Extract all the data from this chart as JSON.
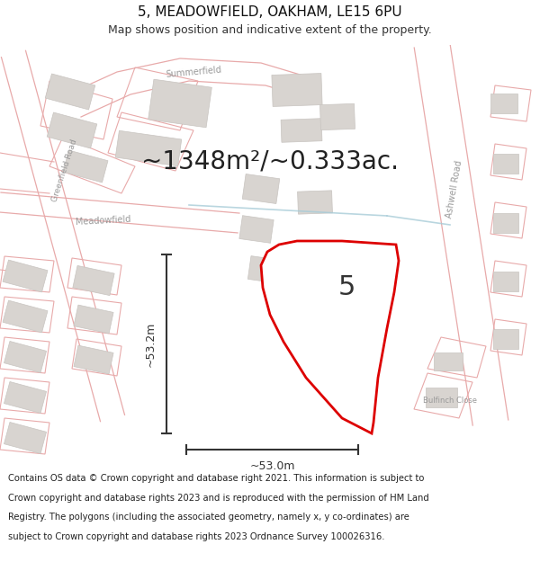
{
  "title_line1": "5, MEADOWFIELD, OAKHAM, LE15 6PU",
  "title_line2": "Map shows position and indicative extent of the property.",
  "area_text": "~1348m²/~0.333ac.",
  "label_number": "5",
  "label_height": "~53.2m",
  "label_width": "~53.0m",
  "footer_text": "Contains OS data © Crown copyright and database right 2021. This information is subject to Crown copyright and database rights 2023 and is reproduced with the permission of HM Land Registry. The polygons (including the associated geometry, namely x, y co-ordinates) are subject to Crown copyright and database rights 2023 Ordnance Survey 100026316.",
  "map_bg": "#f7f6f4",
  "plot_fill": "#ffffff",
  "plot_edge": "#dd0000",
  "road_outline_color": "#e8aaaa",
  "building_fill": "#d8d4d0",
  "building_edge": "#c8c4c0",
  "road_label_color": "#999999",
  "title_fontsize": 11,
  "subtitle_fontsize": 9,
  "area_fontsize": 20,
  "footer_fontsize": 7.2,
  "dim_line_color": "#333333"
}
